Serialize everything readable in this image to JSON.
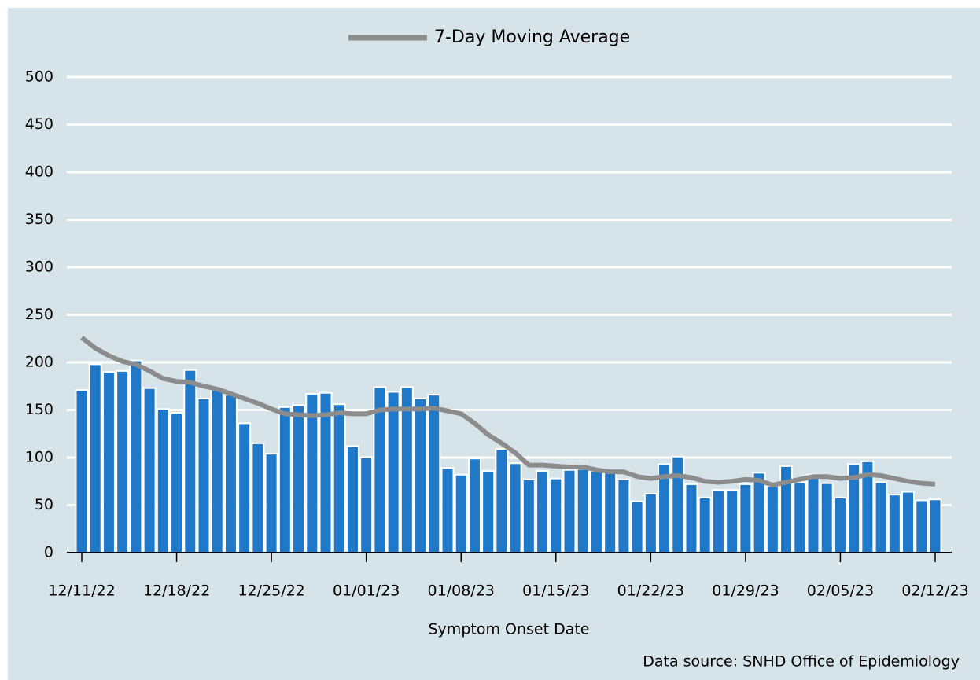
{
  "chart_data": {
    "type": "bar",
    "legend_position": "top",
    "x_label": "Symptom Onset Date",
    "source": "Data source: SNHD Office of Epidemiology",
    "categories": [
      "12/11/22",
      null,
      null,
      null,
      null,
      null,
      null,
      "12/18/22",
      null,
      null,
      null,
      null,
      null,
      null,
      "12/25/22",
      null,
      null,
      null,
      null,
      null,
      null,
      "01/01/23",
      null,
      null,
      null,
      null,
      null,
      null,
      "01/08/23",
      null,
      null,
      null,
      null,
      null,
      null,
      "01/15/23",
      null,
      null,
      null,
      null,
      null,
      null,
      "01/22/23",
      null,
      null,
      null,
      null,
      null,
      null,
      "01/29/23",
      null,
      null,
      null,
      null,
      null,
      null,
      "02/05/23",
      null,
      null,
      null,
      null,
      null,
      null,
      "02/12/23"
    ],
    "series": [
      {
        "type": "bar",
        "color": "#1f78c8",
        "values": [
          171,
          198,
          190,
          191,
          202,
          173,
          151,
          147,
          192,
          162,
          171,
          166,
          136,
          115,
          104,
          153,
          155,
          167,
          168,
          156,
          112,
          100,
          174,
          169,
          174,
          162,
          166,
          89,
          82,
          99,
          86,
          109,
          94,
          77,
          86,
          78,
          87,
          88,
          86,
          84,
          77,
          54,
          62,
          93,
          101,
          72,
          58,
          66,
          66,
          72,
          84,
          70,
          91,
          74,
          82,
          73,
          58,
          93,
          96,
          74,
          61,
          64,
          55,
          56
        ]
      },
      {
        "type": "line",
        "name": "7-Day Moving Average",
        "color": "#8c8c8c",
        "values": [
          226,
          215,
          207,
          201,
          198,
          191,
          183,
          180,
          179,
          175,
          172,
          167,
          162,
          157,
          151,
          146,
          145,
          144,
          145,
          147,
          146,
          146,
          150,
          151,
          151,
          151,
          152,
          149,
          146,
          136,
          124,
          115,
          105,
          92,
          92,
          91,
          90,
          90,
          87,
          85,
          85,
          80,
          78,
          80,
          81,
          79,
          75,
          74,
          75,
          77,
          76,
          71,
          74,
          77,
          80,
          80,
          78,
          79,
          82,
          81,
          78,
          75,
          73,
          72
        ]
      }
    ],
    "ylim": [
      0,
      500
    ],
    "yticks": [
      0,
      50,
      100,
      150,
      200,
      250,
      300,
      350,
      400,
      450,
      500
    ],
    "grid": true
  }
}
